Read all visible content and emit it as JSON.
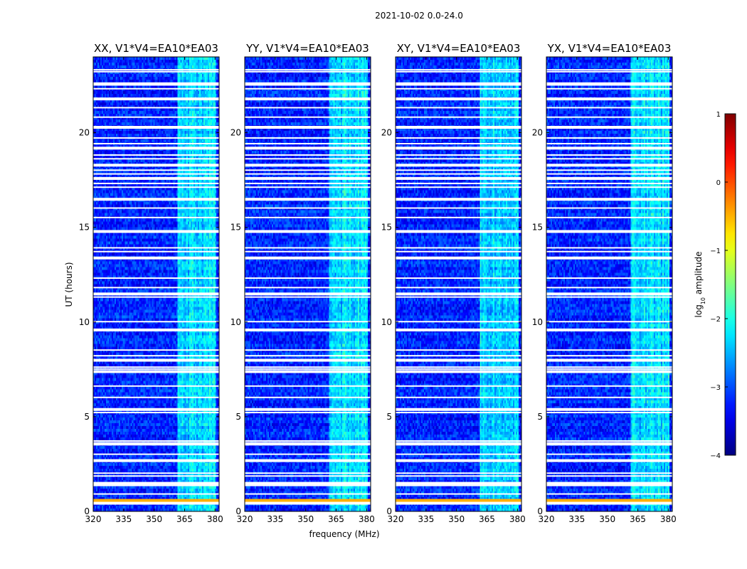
{
  "chart_data": {
    "type": "heatmap",
    "suptitle": "2021-10-02 0.0-24.0",
    "xlabel": "frequency (MHz)",
    "ylabel": "UT (hours)",
    "xlim": [
      320,
      382
    ],
    "ylim": [
      0,
      24
    ],
    "xticks": [
      320,
      335,
      350,
      365,
      380
    ],
    "yticks": [
      0,
      5,
      10,
      15,
      20
    ],
    "colormap": "jet",
    "colorbar": {
      "label": "log10 amplitude",
      "label_base": "log",
      "label_sub": "10",
      "label_rest": " amplitude",
      "range": [
        -4,
        1
      ],
      "ticks": [
        -4,
        -3,
        -2,
        -1,
        0,
        1
      ],
      "tick_labels": [
        "−4",
        "−3",
        "−2",
        "−1",
        "0",
        "1"
      ]
    },
    "panels": [
      {
        "title": "XX, V1*V4=EA10*EA03",
        "pol": "XX",
        "show_ylabel": true
      },
      {
        "title": "YY, V1*V4=EA10*EA03",
        "pol": "YY"
      },
      {
        "title": "XY, V1*V4=EA10*EA03",
        "pol": "XY"
      },
      {
        "title": "YX, V1*V4=EA10*EA03",
        "pol": "YX"
      }
    ],
    "rfi_band_mhz": [
      361.5,
      380.5
    ],
    "background_level": -3.2,
    "rfi_level": -2.3,
    "flagged_ut_hours": [
      0.45,
      0.9,
      1.35,
      1.5,
      1.85,
      2.0,
      2.7,
      3.0,
      3.5,
      3.6,
      3.7,
      5.2,
      5.4,
      6.0,
      6.6,
      7.4,
      7.5,
      7.6,
      8.0,
      8.2,
      8.5,
      9.6,
      10.0,
      11.3,
      11.5,
      11.8,
      12.3,
      13.4,
      13.7,
      13.9,
      14.8,
      15.5,
      16.0,
      16.5,
      17.1,
      17.3,
      17.6,
      17.8,
      18.0,
      18.3,
      18.6,
      18.8,
      19.2,
      19.4,
      19.7,
      20.3,
      20.8,
      21.3,
      21.8,
      22.3,
      22.5,
      22.6,
      23.2,
      23.3
    ],
    "bad_ut_hours": [
      0.55,
      0.6
    ]
  }
}
